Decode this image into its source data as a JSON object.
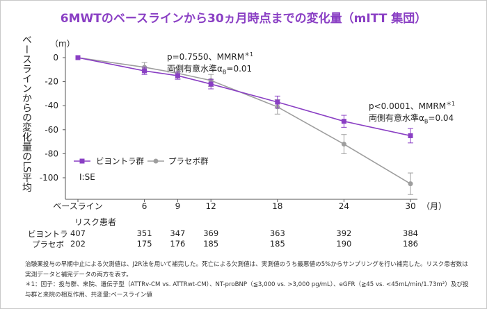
{
  "title": "6MWTのベースラインから30ヵ月時点までの変化量（mITT 集団）",
  "ylabel": "ベースラインからの変化量のLS平均",
  "yunit": "（m）",
  "xunit": "（月）",
  "annotation1": {
    "line1": "p=0.7550、MMRM",
    "line1_sup": "＊1",
    "line2a": "両側有意水準α",
    "line2_sub": "B",
    "line2b": "=0.01"
  },
  "annotation2": {
    "line1": "p<0.0001、MMRM",
    "line1_sup": "＊1",
    "line2a": "両側有意水準α",
    "line2_sub": "B",
    "line2b": "=0.04"
  },
  "legend": {
    "series1": "ビヨントラ群",
    "series2": "プラセボ群",
    "se": "Ⅰ:SE"
  },
  "risk": {
    "header": "リスク患者",
    "rows": [
      {
        "label": "ビヨントラ",
        "values": [
          "407",
          "351",
          "347",
          "369",
          "363",
          "392",
          "384"
        ]
      },
      {
        "label": "プラセボ",
        "values": [
          "202",
          "175",
          "176",
          "185",
          "185",
          "190",
          "186"
        ]
      }
    ]
  },
  "footnotes": [
    "治験薬投与の早期中止による欠測値は、J2R法を用いて補完した。死亡による欠測値は、実測値のうち最悪値の5%からサンプリングを行い補完した。リスク患者数は実測データと補完データの両方を表す。",
    "＊1：因子：投与群、来院、遺伝子型（ATTRv-CM vs. ATTRwt-CM）、NT-proBNP（≦3,000 vs. >3,000 pg/mL）、eGFR（≧45 vs. <45mL/min/1.73m²）及び投与群と来院の相互作用、共変量:ベースライン値"
  ],
  "colors": {
    "series1": "#8a3fc4",
    "series2": "#9e9e9e",
    "title": "#8a3fc4"
  },
  "chart_data": {
    "type": "line",
    "x": [
      0,
      6,
      9,
      12,
      18,
      24,
      30
    ],
    "xticklabels": [
      "ベースライン",
      "6",
      "9",
      "12",
      "18",
      "24",
      "30"
    ],
    "yticks": [
      0,
      -20,
      -40,
      -60,
      -80,
      -100
    ],
    "ylim": [
      -110,
      5
    ],
    "xlabel": "（月）",
    "ylabel": "ベースラインからの変化量のLS平均",
    "series": [
      {
        "name": "ビヨントラ群",
        "values": [
          0,
          -11,
          -15,
          -22,
          -37,
          -53,
          -65
        ],
        "se": [
          0,
          3,
          3,
          4,
          5,
          5,
          6
        ],
        "marker": "square"
      },
      {
        "name": "プラセボ群",
        "values": [
          0,
          -8,
          -13,
          -19,
          -41,
          -72,
          -105
        ],
        "se": [
          0,
          4,
          4,
          5,
          6,
          8,
          9
        ],
        "marker": "circle"
      }
    ],
    "legend_position": "bottom-left"
  }
}
